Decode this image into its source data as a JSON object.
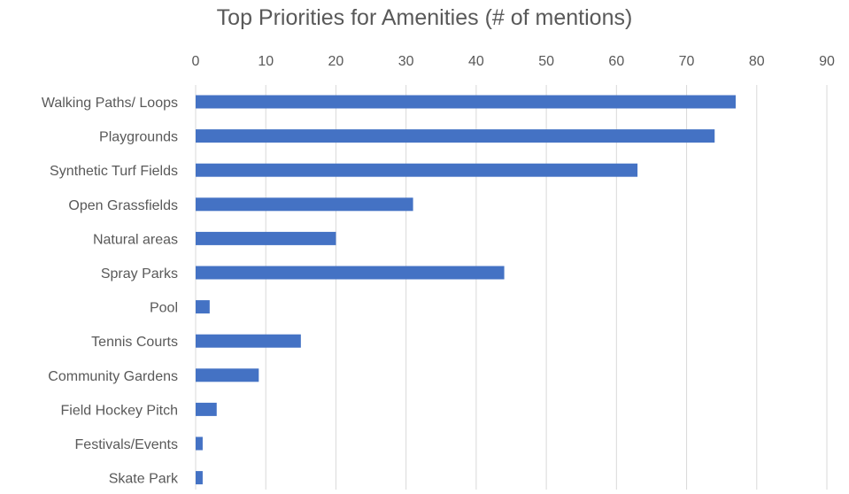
{
  "chart_data": {
    "type": "bar",
    "orientation": "horizontal",
    "title": "Top Priorities for Amenities (# of mentions)",
    "xlabel": "",
    "ylabel": "",
    "xlim": [
      0,
      90
    ],
    "x_ticks": [
      0,
      10,
      20,
      30,
      40,
      50,
      60,
      70,
      80,
      90
    ],
    "x_axis_position": "top",
    "grid": true,
    "legend": "none",
    "categories": [
      "Walking Paths/ Loops",
      "Playgrounds",
      "Synthetic Turf Fields",
      "Open Grassfields",
      "Natural areas",
      "Spray Parks",
      "Pool",
      "Tennis Courts",
      "Community Gardens",
      "Field Hockey Pitch",
      "Festivals/Events",
      "Skate Park"
    ],
    "values": [
      77,
      74,
      63,
      31,
      20,
      44,
      2,
      15,
      9,
      3,
      1,
      1
    ],
    "colors": {
      "bar": "#4472C4",
      "grid": "#D9D9D9",
      "text": "#595959"
    }
  }
}
